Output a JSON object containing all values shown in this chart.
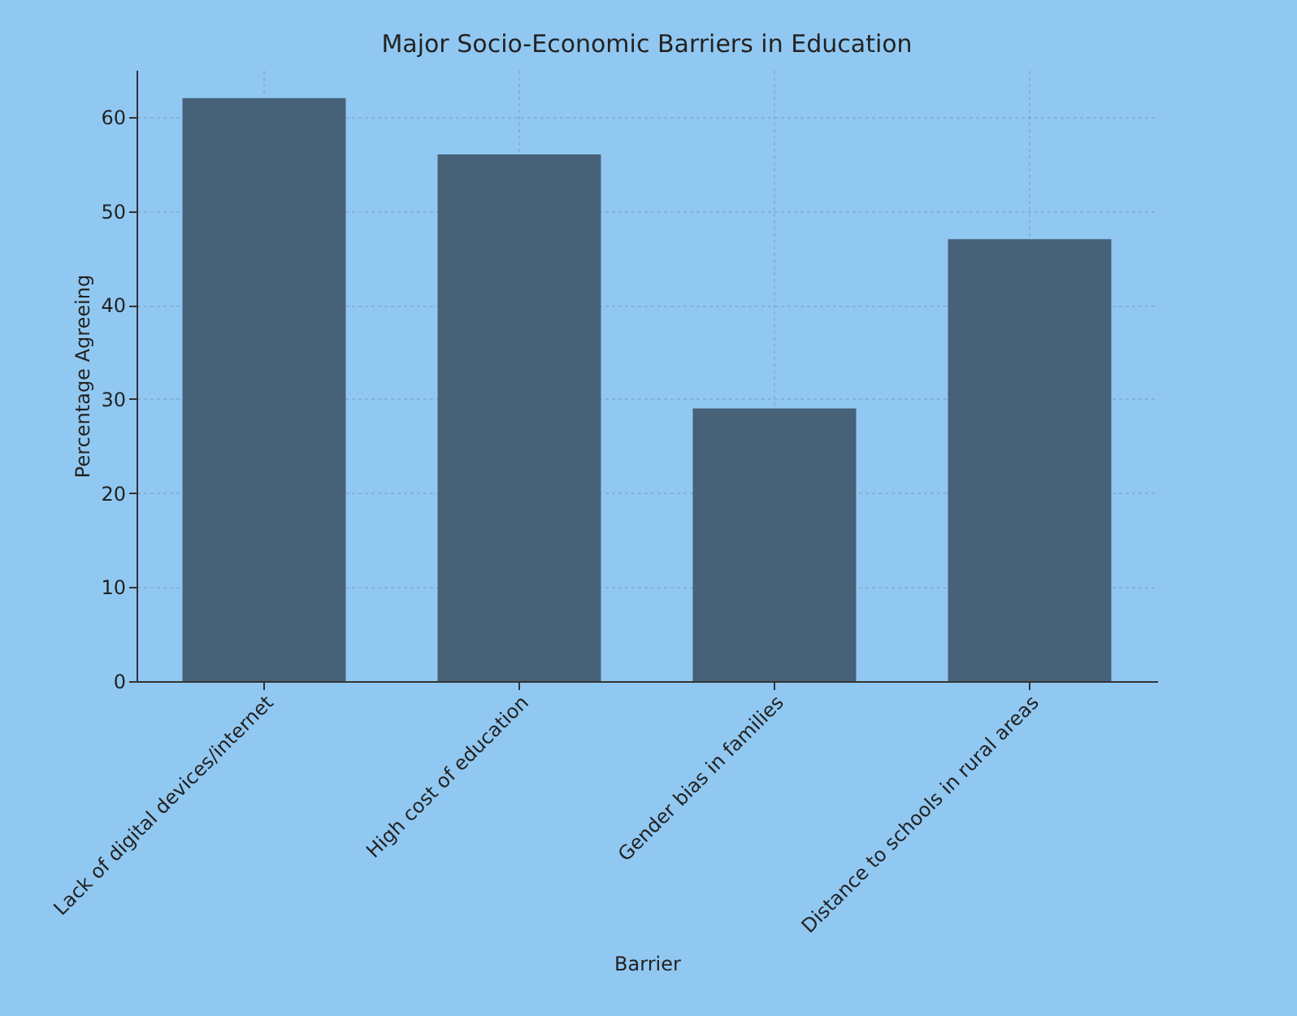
{
  "chart_data": {
    "type": "bar",
    "title": "Major Socio-Economic Barriers in Education",
    "xlabel": "Barrier",
    "ylabel": "Percentage Agreeing",
    "categories": [
      "Lack of digital devices/internet",
      "High cost of education",
      "Gender bias in families",
      "Distance to schools in rural areas"
    ],
    "values": [
      62,
      56,
      29,
      47
    ],
    "color": "#476178",
    "ylim": [
      0,
      65
    ],
    "yticks": [
      0,
      10,
      20,
      30,
      40,
      50,
      60
    ],
    "grid": true
  }
}
